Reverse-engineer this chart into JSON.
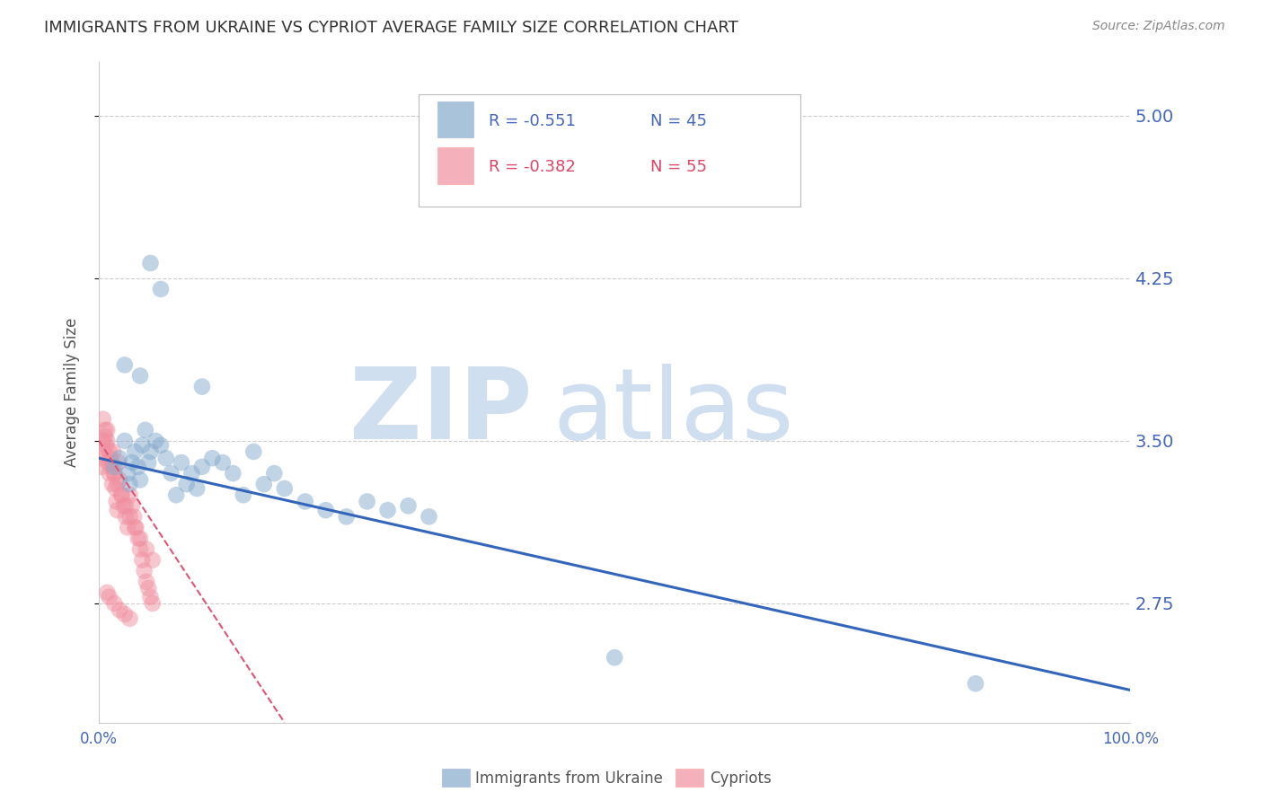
{
  "title": "IMMIGRANTS FROM UKRAINE VS CYPRIOT AVERAGE FAMILY SIZE CORRELATION CHART",
  "source": "Source: ZipAtlas.com",
  "ylabel": "Average Family Size",
  "xlim": [
    0.0,
    1.0
  ],
  "ylim": [
    2.2,
    5.25
  ],
  "yticks": [
    2.75,
    3.5,
    4.25,
    5.0
  ],
  "xticks": [
    0.0,
    0.1,
    0.2,
    0.3,
    0.4,
    0.5,
    0.6,
    0.7,
    0.8,
    0.9,
    1.0
  ],
  "xticklabels": [
    "0.0%",
    "",
    "",
    "",
    "",
    "",
    "",
    "",
    "",
    "",
    "100.0%"
  ],
  "legend1_label": "Immigrants from Ukraine",
  "legend2_label": "Cypriots",
  "R1": "-0.551",
  "N1": "45",
  "R2": "-0.382",
  "N2": "55",
  "blue_color": "#85AACC",
  "pink_color": "#F090A0",
  "axis_color": "#4466BB",
  "watermark_color": "#D0DFF0",
  "blue_line_color": "#3366BB",
  "pink_line_color": "#DD5577",
  "blue_scatter_x": [
    0.015,
    0.02,
    0.025,
    0.028,
    0.03,
    0.032,
    0.035,
    0.038,
    0.04,
    0.042,
    0.045,
    0.048,
    0.05,
    0.055,
    0.06,
    0.065,
    0.07,
    0.075,
    0.08,
    0.085,
    0.09,
    0.095,
    0.1,
    0.11,
    0.12,
    0.13,
    0.14,
    0.15,
    0.16,
    0.17,
    0.18,
    0.2,
    0.22,
    0.24,
    0.26,
    0.28,
    0.3,
    0.32,
    0.5,
    0.85,
    0.05,
    0.06,
    0.1,
    0.04,
    0.025
  ],
  "blue_scatter_y": [
    3.38,
    3.42,
    3.5,
    3.35,
    3.3,
    3.4,
    3.45,
    3.38,
    3.32,
    3.48,
    3.55,
    3.4,
    3.45,
    3.5,
    3.48,
    3.42,
    3.35,
    3.25,
    3.4,
    3.3,
    3.35,
    3.28,
    3.38,
    3.42,
    3.4,
    3.35,
    3.25,
    3.45,
    3.3,
    3.35,
    3.28,
    3.22,
    3.18,
    3.15,
    3.22,
    3.18,
    3.2,
    3.15,
    2.5,
    2.38,
    4.32,
    4.2,
    3.75,
    3.8,
    3.85
  ],
  "pink_scatter_x": [
    0.002,
    0.003,
    0.004,
    0.005,
    0.006,
    0.007,
    0.008,
    0.009,
    0.01,
    0.011,
    0.012,
    0.013,
    0.014,
    0.015,
    0.016,
    0.017,
    0.018,
    0.019,
    0.02,
    0.022,
    0.024,
    0.026,
    0.028,
    0.03,
    0.032,
    0.034,
    0.036,
    0.038,
    0.04,
    0.042,
    0.044,
    0.046,
    0.048,
    0.05,
    0.052,
    0.004,
    0.006,
    0.008,
    0.01,
    0.012,
    0.015,
    0.018,
    0.022,
    0.026,
    0.03,
    0.035,
    0.04,
    0.046,
    0.052,
    0.008,
    0.01,
    0.015,
    0.02,
    0.025,
    0.03
  ],
  "pink_scatter_y": [
    3.42,
    3.38,
    3.5,
    3.45,
    3.52,
    3.48,
    3.55,
    3.4,
    3.35,
    3.42,
    3.38,
    3.3,
    3.45,
    3.35,
    3.28,
    3.22,
    3.18,
    3.4,
    3.32,
    3.25,
    3.2,
    3.15,
    3.1,
    3.25,
    3.2,
    3.15,
    3.1,
    3.05,
    3.0,
    2.95,
    2.9,
    2.85,
    2.82,
    2.78,
    2.75,
    3.6,
    3.55,
    3.5,
    3.45,
    3.4,
    3.35,
    3.3,
    3.25,
    3.2,
    3.15,
    3.1,
    3.05,
    3.0,
    2.95,
    2.8,
    2.78,
    2.75,
    2.72,
    2.7,
    2.68
  ],
  "blue_line_x": [
    0.0,
    1.0
  ],
  "blue_line_y": [
    3.42,
    2.35
  ],
  "pink_line_x": [
    0.0,
    0.18
  ],
  "pink_line_y": [
    3.5,
    2.2
  ]
}
